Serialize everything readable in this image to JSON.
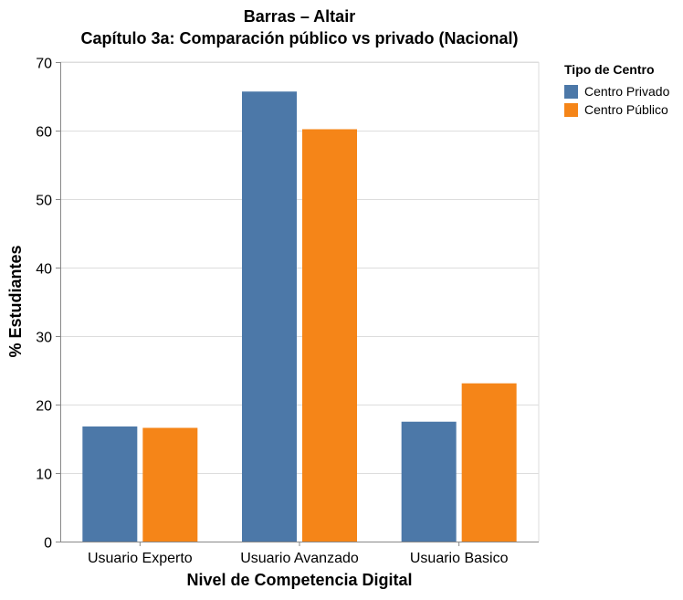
{
  "chart": {
    "title": "Barras – Altair",
    "subtitle": "Capítulo 3a: Comparación público vs privado (Nacional)"
  },
  "chart_data": {
    "type": "bar",
    "title": "Barras – Altair",
    "subtitle": "Capítulo 3a: Comparación público vs privado (Nacional)",
    "xlabel": "Nivel de Competencia Digital",
    "ylabel": "% Estudiantes",
    "categories": [
      "Usuario Experto",
      "Usuario Avanzado",
      "Usuario Basico"
    ],
    "series": [
      {
        "name": "Centro Privado",
        "color": "#4c78a8",
        "values": [
          16.8,
          65.7,
          17.5
        ]
      },
      {
        "name": "Centro Público",
        "color": "#f58518",
        "values": [
          16.6,
          60.2,
          23.1
        ]
      }
    ],
    "ylim": [
      0,
      70
    ],
    "yticks": [
      0,
      10,
      20,
      30,
      40,
      50,
      60,
      70
    ],
    "grid": true,
    "legend": {
      "title": "Tipo de Centro",
      "placement": "right"
    }
  }
}
